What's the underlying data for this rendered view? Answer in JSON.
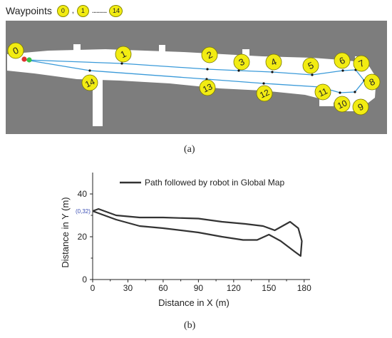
{
  "panel_a": {
    "legend_label": "Waypoints",
    "legend_first": "0",
    "legend_second": "1",
    "legend_last": "14",
    "legend_sep": ",",
    "legend_dots": "..........",
    "caption": "(a)",
    "colors": {
      "waypoint_fill": "#f2ec12",
      "path": "#3a9ad9",
      "start_red": "#e0322f",
      "start_green": "#3cc24a",
      "map_bg": "#7d7d7d"
    },
    "waypoints": [
      "0",
      "1",
      "2",
      "3",
      "4",
      "5",
      "6",
      "7",
      "8",
      "9",
      "10",
      "11",
      "12",
      "13",
      "14"
    ]
  },
  "panel_b": {
    "caption": "(b)",
    "start_annotation": "(0,32)"
  },
  "chart_data": {
    "type": "line",
    "title": "",
    "xlabel": "Distance in X (m)",
    "ylabel": "Distance in Y (m)",
    "xlim": [
      0,
      185
    ],
    "ylim": [
      0,
      50
    ],
    "xticks": [
      0,
      30,
      60,
      90,
      120,
      150,
      180
    ],
    "yticks": [
      0,
      20,
      40
    ],
    "grid": false,
    "legend_position": "top",
    "series": [
      {
        "name": "Path followed by robot in Global Map",
        "color": "#333333",
        "x": [
          0,
          5,
          20,
          40,
          60,
          90,
          110,
          130,
          145,
          155,
          168,
          175,
          178,
          177,
          172,
          160,
          150,
          140,
          128,
          110,
          90,
          60,
          40,
          20,
          5,
          0
        ],
        "y": [
          32,
          33,
          30,
          29,
          29,
          28.5,
          27,
          26,
          25,
          23,
          27,
          24,
          18,
          11,
          13,
          18,
          21,
          18.5,
          18.5,
          20,
          22,
          24,
          25,
          28,
          31,
          32
        ]
      }
    ]
  }
}
